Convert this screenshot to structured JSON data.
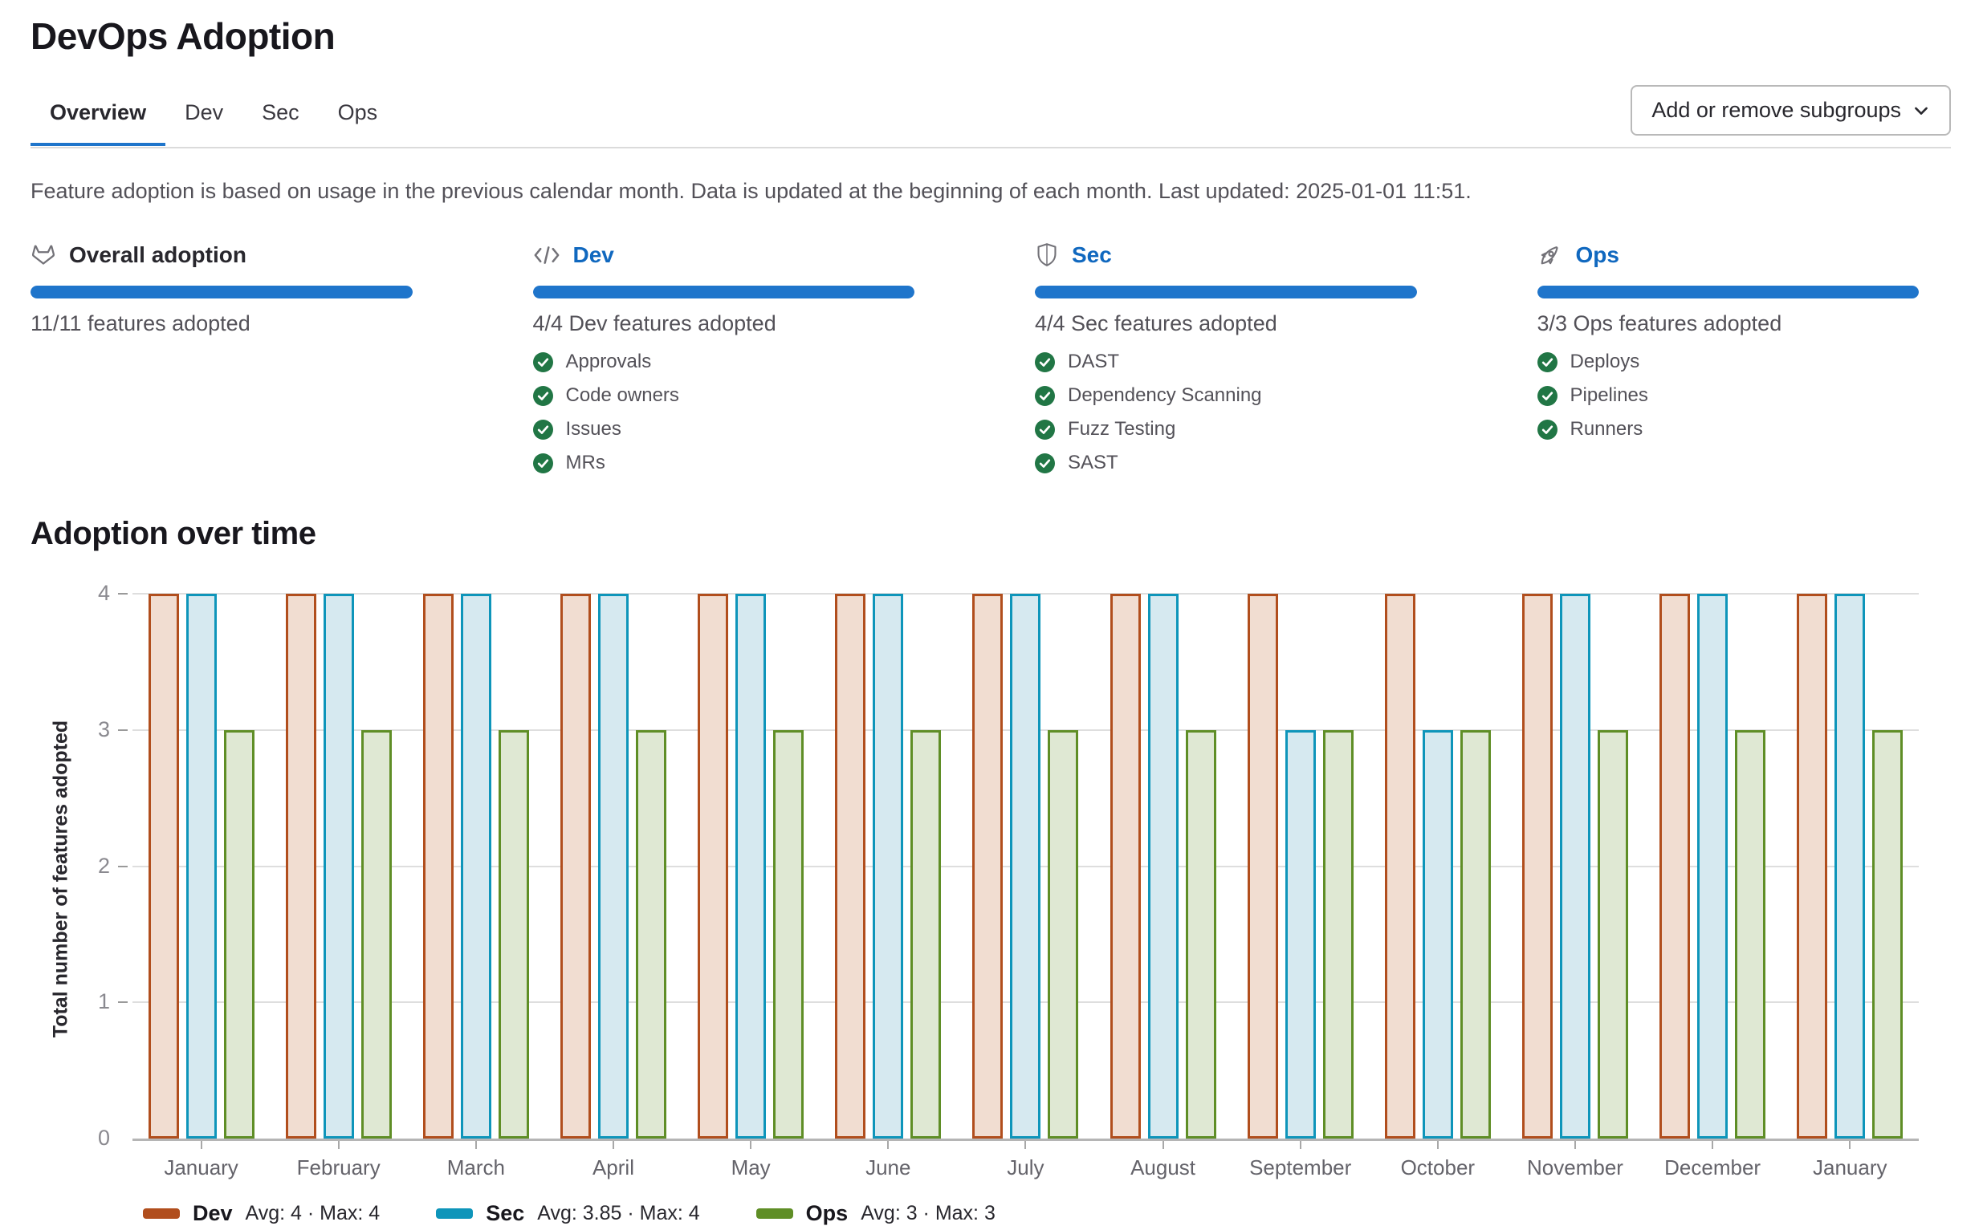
{
  "page": {
    "title": "DevOps Adoption"
  },
  "tabs": [
    {
      "label": "Overview",
      "active": true
    },
    {
      "label": "Dev",
      "active": false
    },
    {
      "label": "Sec",
      "active": false
    },
    {
      "label": "Ops",
      "active": false
    }
  ],
  "subgroups_button": {
    "label": "Add or remove subgroups",
    "icon": "chevron-down-icon"
  },
  "info_text": "Feature adoption is based on usage in the previous calendar month. Data is updated at the beginning of each month. Last updated: 2025-01-01 11:51.",
  "cards": [
    {
      "icon": "tanuki-icon",
      "title": "Overall adoption",
      "is_link": false,
      "progress_percent": 100,
      "summary": "11/11 features adopted",
      "features": []
    },
    {
      "icon": "code-icon",
      "title": "Dev",
      "is_link": true,
      "progress_percent": 100,
      "summary": "4/4 Dev features adopted",
      "features": [
        "Approvals",
        "Code owners",
        "Issues",
        "MRs"
      ]
    },
    {
      "icon": "shield-icon",
      "title": "Sec",
      "is_link": true,
      "progress_percent": 100,
      "summary": "4/4 Sec features adopted",
      "features": [
        "DAST",
        "Dependency Scanning",
        "Fuzz Testing",
        "SAST"
      ]
    },
    {
      "icon": "rocket-icon",
      "title": "Ops",
      "is_link": true,
      "progress_percent": 100,
      "summary": "3/3 Ops features adopted",
      "features": [
        "Deploys",
        "Pipelines",
        "Runners"
      ]
    }
  ],
  "section_title": "Adoption over time",
  "chart_data": {
    "type": "bar",
    "title": "Adoption over time",
    "xlabel": "",
    "ylabel": "Total number of features adopted",
    "ylim": [
      0,
      4
    ],
    "yticks": [
      "4",
      "3",
      "2",
      "1",
      "0"
    ],
    "grid": true,
    "legend_position": "bottom",
    "categories": [
      "January",
      "February",
      "March",
      "April",
      "May",
      "June",
      "July",
      "August",
      "September",
      "October",
      "November",
      "December",
      "January"
    ],
    "series": [
      {
        "name": "Dev",
        "color": "#b14e1d",
        "fill": "#f1ddd1",
        "values": [
          4,
          4,
          4,
          4,
          4,
          4,
          4,
          4,
          4,
          4,
          4,
          4,
          4
        ],
        "stats": "Avg: 4 · Max: 4"
      },
      {
        "name": "Sec",
        "color": "#0e95ba",
        "fill": "#d6e9f0",
        "values": [
          4,
          4,
          4,
          4,
          4,
          4,
          4,
          4,
          3,
          3,
          4,
          4,
          4
        ],
        "stats": "Avg: 3.85 · Max: 4"
      },
      {
        "name": "Ops",
        "color": "#5f8e26",
        "fill": "#dfe8d3",
        "values": [
          3,
          3,
          3,
          3,
          3,
          3,
          3,
          3,
          3,
          3,
          3,
          3,
          3
        ],
        "stats": "Avg: 3 · Max: 3"
      }
    ],
    "colors": {
      "progress_bar": "#1f75cb",
      "link": "#1068bf",
      "check": "#217645",
      "tab_indicator": "#1f75cb"
    }
  }
}
